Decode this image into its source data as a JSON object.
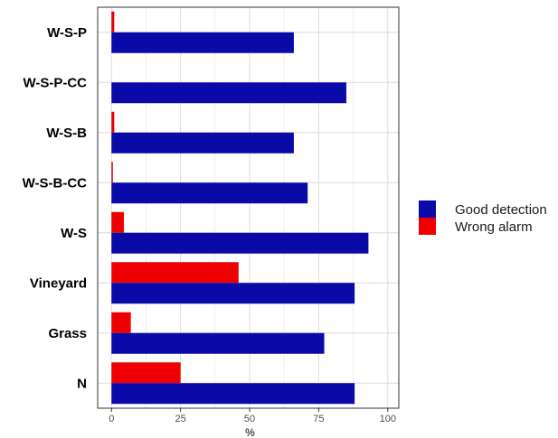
{
  "chart_data": {
    "type": "bar",
    "orientation": "horizontal",
    "categories": [
      "W-S-P",
      "W-S-P-CC",
      "W-S-B",
      "W-S-B-CC",
      "W-S",
      "Vineyard",
      "Grass",
      "N"
    ],
    "series": [
      {
        "name": "Good detection",
        "color": "#0a0aa8",
        "values": [
          66,
          85,
          66,
          71,
          93,
          88,
          77,
          88
        ]
      },
      {
        "name": "Wrong alarm",
        "color": "#ee0000",
        "values": [
          1,
          0,
          1,
          0.5,
          4.5,
          46,
          7,
          25
        ]
      }
    ],
    "xlabel": "%",
    "ylabel": "",
    "title": "",
    "xlim": [
      -5,
      104
    ],
    "xticks": [
      0,
      25,
      50,
      75,
      100
    ],
    "xtick_labels": [
      "0",
      "25",
      "50",
      "75",
      "100"
    ],
    "grid": true,
    "legend_position": "right"
  }
}
